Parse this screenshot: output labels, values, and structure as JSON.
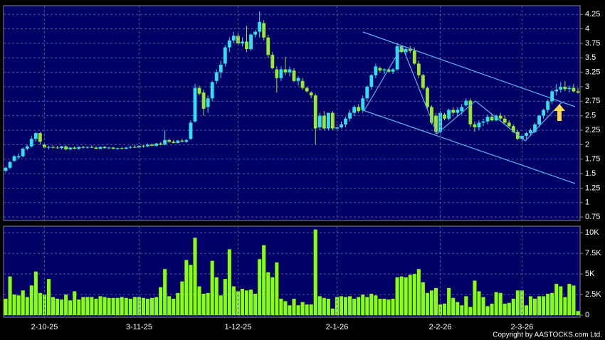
{
  "copyright": "Copyright by AASTOCKS.com Ltd.",
  "chart_data": [
    {
      "type": "candlestick",
      "colors": {
        "up": "#33e0f0",
        "down": "#99e833"
      },
      "ylim": [
        0.69,
        4.4
      ],
      "yticks": [
        0.75,
        1,
        1.25,
        1.5,
        1.75,
        2,
        2.25,
        2.5,
        2.75,
        3,
        3.25,
        3.5,
        3.75,
        4,
        4.25
      ],
      "grid": true,
      "ohlc": [
        [
          1.55,
          1.62,
          1.52,
          1.6
        ],
        [
          1.6,
          1.72,
          1.58,
          1.7
        ],
        [
          1.72,
          1.82,
          1.7,
          1.8
        ],
        [
          1.78,
          1.85,
          1.75,
          1.8
        ],
        [
          1.8,
          1.95,
          1.78,
          1.93
        ],
        [
          1.93,
          2.0,
          1.9,
          1.97
        ],
        [
          1.97,
          2.15,
          1.95,
          2.1
        ],
        [
          2.1,
          2.22,
          2.05,
          2.2
        ],
        [
          2.2,
          2.22,
          2.0,
          2.05
        ],
        [
          2.0,
          2.02,
          1.93,
          1.95
        ],
        [
          1.95,
          1.98,
          1.92,
          1.96
        ],
        [
          1.96,
          1.99,
          1.93,
          1.95
        ],
        [
          1.95,
          1.98,
          1.93,
          1.94
        ],
        [
          1.94,
          1.98,
          1.92,
          1.97
        ],
        [
          1.97,
          1.99,
          1.9,
          1.92
        ],
        [
          1.92,
          1.96,
          1.9,
          1.95
        ],
        [
          1.95,
          1.97,
          1.92,
          1.93
        ],
        [
          1.93,
          1.97,
          1.91,
          1.96
        ],
        [
          1.96,
          1.98,
          1.93,
          1.95
        ],
        [
          1.95,
          1.97,
          1.93,
          1.96
        ],
        [
          1.96,
          1.99,
          1.94,
          1.95
        ],
        [
          1.95,
          1.97,
          1.92,
          1.93
        ],
        [
          1.93,
          1.97,
          1.92,
          1.96
        ],
        [
          1.96,
          1.98,
          1.93,
          1.94
        ],
        [
          1.94,
          1.96,
          1.92,
          1.95
        ],
        [
          1.95,
          1.96,
          1.92,
          1.93
        ],
        [
          1.93,
          1.95,
          1.91,
          1.94
        ],
        [
          1.94,
          1.96,
          1.92,
          1.93
        ],
        [
          1.93,
          1.96,
          1.92,
          1.95
        ],
        [
          1.95,
          1.98,
          1.93,
          1.96
        ],
        [
          1.96,
          2.0,
          1.94,
          1.95
        ],
        [
          1.95,
          1.99,
          1.94,
          1.98
        ],
        [
          1.98,
          2.0,
          1.95,
          1.97
        ],
        [
          1.97,
          2.02,
          1.96,
          2.0
        ],
        [
          2.0,
          2.02,
          1.97,
          1.98
        ],
        [
          1.98,
          2.03,
          1.97,
          2.02
        ],
        [
          2.02,
          2.05,
          1.99,
          2.0
        ],
        [
          2.0,
          2.25,
          1.99,
          2.08
        ],
        [
          2.08,
          2.1,
          2.03,
          2.05
        ],
        [
          2.05,
          2.08,
          2.02,
          2.03
        ],
        [
          2.03,
          2.08,
          2.02,
          2.07
        ],
        [
          2.07,
          2.1,
          2.04,
          2.05
        ],
        [
          2.05,
          2.1,
          2.03,
          2.08
        ],
        [
          2.1,
          2.42,
          2.08,
          2.38
        ],
        [
          2.4,
          3.05,
          2.38,
          2.98
        ],
        [
          2.98,
          3.02,
          2.85,
          2.88
        ],
        [
          2.9,
          2.95,
          2.5,
          2.62
        ],
        [
          2.65,
          2.85,
          2.55,
          2.8
        ],
        [
          2.8,
          3.1,
          2.75,
          3.08
        ],
        [
          3.1,
          3.3,
          3.05,
          3.25
        ],
        [
          3.25,
          3.45,
          3.15,
          3.38
        ],
        [
          3.4,
          3.72,
          3.35,
          3.68
        ],
        [
          3.68,
          3.85,
          3.6,
          3.8
        ],
        [
          3.8,
          3.95,
          3.75,
          3.88
        ],
        [
          3.88,
          3.92,
          3.72,
          3.75
        ],
        [
          3.75,
          3.85,
          3.7,
          3.78
        ],
        [
          3.78,
          4.05,
          3.6,
          3.65
        ],
        [
          3.65,
          3.92,
          3.62,
          3.9
        ],
        [
          3.9,
          3.98,
          3.85,
          3.95
        ],
        [
          3.95,
          4.3,
          3.85,
          4.12
        ],
        [
          4.1,
          4.15,
          3.8,
          3.85
        ],
        [
          3.85,
          3.9,
          3.5,
          3.55
        ],
        [
          3.55,
          3.6,
          3.3,
          3.32
        ],
        [
          3.3,
          3.35,
          2.9,
          3.15
        ],
        [
          3.15,
          3.35,
          3.1,
          3.3
        ],
        [
          3.3,
          3.52,
          3.2,
          3.25
        ],
        [
          3.25,
          3.35,
          3.18,
          3.3
        ],
        [
          3.28,
          3.32,
          3.08,
          3.1
        ],
        [
          3.1,
          3.18,
          3.02,
          3.15
        ],
        [
          3.1,
          3.15,
          2.95,
          2.98
        ],
        [
          2.98,
          3.0,
          2.9,
          2.92
        ],
        [
          2.9,
          2.92,
          2.8,
          2.85
        ],
        [
          2.85,
          2.88,
          2.0,
          2.28
        ],
        [
          2.3,
          2.55,
          2.25,
          2.5
        ],
        [
          2.5,
          2.58,
          2.25,
          2.28
        ],
        [
          2.28,
          2.55,
          2.25,
          2.55
        ],
        [
          2.55,
          2.58,
          2.25,
          2.28
        ],
        [
          2.28,
          2.35,
          2.22,
          2.3
        ],
        [
          2.3,
          2.4,
          2.28,
          2.35
        ],
        [
          2.35,
          2.48,
          2.3,
          2.45
        ],
        [
          2.45,
          2.6,
          2.4,
          2.55
        ],
        [
          2.55,
          2.68,
          2.5,
          2.65
        ],
        [
          2.65,
          2.7,
          2.55,
          2.58
        ],
        [
          2.6,
          2.85,
          2.55,
          2.8
        ],
        [
          2.8,
          3.02,
          2.75,
          3.0
        ],
        [
          3.0,
          3.22,
          2.95,
          3.2
        ],
        [
          3.2,
          3.4,
          3.15,
          3.35
        ],
        [
          3.32,
          3.35,
          3.25,
          3.28
        ],
        [
          3.28,
          3.32,
          3.22,
          3.3
        ],
        [
          3.3,
          3.32,
          3.25,
          3.26
        ],
        [
          3.26,
          3.32,
          3.22,
          3.3
        ],
        [
          3.3,
          3.75,
          3.28,
          3.7
        ],
        [
          3.7,
          3.72,
          3.58,
          3.6
        ],
        [
          3.6,
          3.68,
          3.55,
          3.65
        ],
        [
          3.65,
          3.7,
          3.58,
          3.62
        ],
        [
          3.62,
          3.68,
          3.38,
          3.4
        ],
        [
          3.4,
          3.45,
          3.15,
          3.2
        ],
        [
          3.2,
          3.22,
          2.95,
          2.98
        ],
        [
          2.98,
          3.0,
          2.62,
          2.65
        ],
        [
          2.65,
          2.68,
          2.35,
          2.38
        ],
        [
          2.5,
          2.55,
          2.18,
          2.22
        ],
        [
          2.22,
          2.58,
          2.2,
          2.55
        ],
        [
          2.52,
          2.55,
          2.42,
          2.45
        ],
        [
          2.45,
          2.62,
          2.42,
          2.6
        ],
        [
          2.6,
          2.65,
          2.52,
          2.55
        ],
        [
          2.55,
          2.65,
          2.5,
          2.6
        ],
        [
          2.58,
          2.7,
          2.52,
          2.65
        ],
        [
          2.68,
          2.8,
          2.65,
          2.76
        ],
        [
          2.76,
          2.8,
          2.3,
          2.35
        ],
        [
          2.35,
          2.4,
          2.22,
          2.3
        ],
        [
          2.3,
          2.42,
          2.25,
          2.38
        ],
        [
          2.38,
          2.45,
          2.32,
          2.4
        ],
        [
          2.4,
          2.52,
          2.35,
          2.48
        ],
        [
          2.48,
          2.52,
          2.4,
          2.42
        ],
        [
          2.42,
          2.52,
          2.4,
          2.5
        ],
        [
          2.5,
          2.55,
          2.42,
          2.45
        ],
        [
          2.45,
          2.5,
          2.35,
          2.38
        ],
        [
          2.38,
          2.42,
          2.3,
          2.32
        ],
        [
          2.32,
          2.35,
          2.2,
          2.22
        ],
        [
          2.22,
          2.25,
          2.08,
          2.1
        ],
        [
          2.1,
          2.18,
          2.05,
          2.15
        ],
        [
          2.15,
          2.22,
          2.1,
          2.2
        ],
        [
          2.2,
          2.28,
          2.15,
          2.25
        ],
        [
          2.22,
          2.38,
          2.2,
          2.35
        ],
        [
          2.35,
          2.52,
          2.3,
          2.5
        ],
        [
          2.5,
          2.62,
          2.45,
          2.6
        ],
        [
          2.6,
          2.78,
          2.55,
          2.75
        ],
        [
          2.75,
          2.95,
          2.7,
          2.92
        ],
        [
          2.92,
          3.05,
          2.85,
          2.95
        ],
        [
          2.95,
          3.08,
          2.9,
          3.0
        ],
        [
          3.0,
          3.1,
          2.92,
          2.96
        ],
        [
          2.96,
          3.02,
          2.9,
          2.98
        ],
        [
          2.98,
          3.05,
          2.9,
          2.92
        ],
        [
          2.92,
          2.98,
          2.88,
          2.9
        ]
      ]
    },
    {
      "type": "bar",
      "color": "#88ff11",
      "ylim": [
        -250,
        10800
      ],
      "grid": true,
      "yticks": [
        0,
        {
          "value": 2500,
          "label": "2.5K"
        },
        {
          "value": 5000,
          "label": "5K"
        },
        {
          "value": 7500,
          "label": "7.5K"
        },
        {
          "value": 10000,
          "label": "10K"
        }
      ],
      "categories": [
        null,
        null,
        null,
        null,
        null,
        null,
        null,
        null,
        null,
        "2-10-25",
        null,
        null,
        null,
        null,
        null,
        null,
        null,
        null,
        null,
        null,
        null,
        null,
        null,
        null,
        null,
        null,
        null,
        null,
        null,
        null,
        null,
        "3-11-25",
        null,
        null,
        null,
        null,
        null,
        null,
        null,
        null,
        null,
        null,
        null,
        null,
        null,
        null,
        null,
        null,
        null,
        null,
        null,
        null,
        null,
        null,
        "1-12-25",
        null,
        null,
        null,
        null,
        null,
        null,
        null,
        null,
        null,
        null,
        null,
        null,
        null,
        null,
        null,
        null,
        null,
        null,
        null,
        null,
        null,
        null,
        "2-1-26",
        null,
        null,
        null,
        null,
        null,
        null,
        null,
        null,
        null,
        null,
        null,
        null,
        null,
        null,
        null,
        null,
        null,
        null,
        null,
        null,
        null,
        null,
        null,
        "2-2-26",
        null,
        null,
        null,
        null,
        null,
        null,
        null,
        null,
        null,
        null,
        null,
        null,
        null,
        null,
        null,
        null,
        null,
        null,
        "2-3-26",
        null,
        null,
        null,
        null,
        null,
        null,
        null,
        null,
        null,
        null,
        null,
        null,
        null
      ],
      "values": [
        2000,
        4700,
        2500,
        2400,
        3000,
        2200,
        3600,
        5300,
        2700,
        2500,
        4400,
        2200,
        2000,
        1900,
        2500,
        1800,
        2900,
        1900,
        2200,
        2200,
        2200,
        2000,
        2300,
        2200,
        2100,
        2100,
        2100,
        2200,
        2100,
        2000,
        2200,
        2200,
        2100,
        2000,
        2100,
        2200,
        3400,
        5600,
        2300,
        2000,
        2700,
        4100,
        6700,
        6100,
        9400,
        3500,
        2600,
        2700,
        6600,
        4600,
        2400,
        4400,
        8000,
        3500,
        2900,
        3200,
        3000,
        3100,
        2600,
        6800,
        8500,
        5200,
        4600,
        6400,
        2000,
        1700,
        1200,
        2000,
        1200,
        1600,
        1300,
        1300,
        10400,
        2300,
        2100,
        2000,
        800,
        2200,
        2300,
        2200,
        2300,
        2000,
        2200,
        2500,
        2200,
        2600,
        2400,
        2000,
        2000,
        1900,
        2000,
        4600,
        4700,
        4600,
        4900,
        5000,
        5600,
        4000,
        2700,
        3000,
        3300,
        1300,
        1400,
        3300,
        2100,
        1600,
        1200,
        2300,
        1000,
        4200,
        2900,
        2200,
        1100,
        1400,
        2800,
        2700,
        1400,
        1500,
        2000,
        3000,
        3000,
        1200,
        2300,
        2000,
        2300,
        2300,
        2600,
        2700,
        3800,
        3500,
        2200,
        3800,
        3600,
        500
      ]
    }
  ]
}
